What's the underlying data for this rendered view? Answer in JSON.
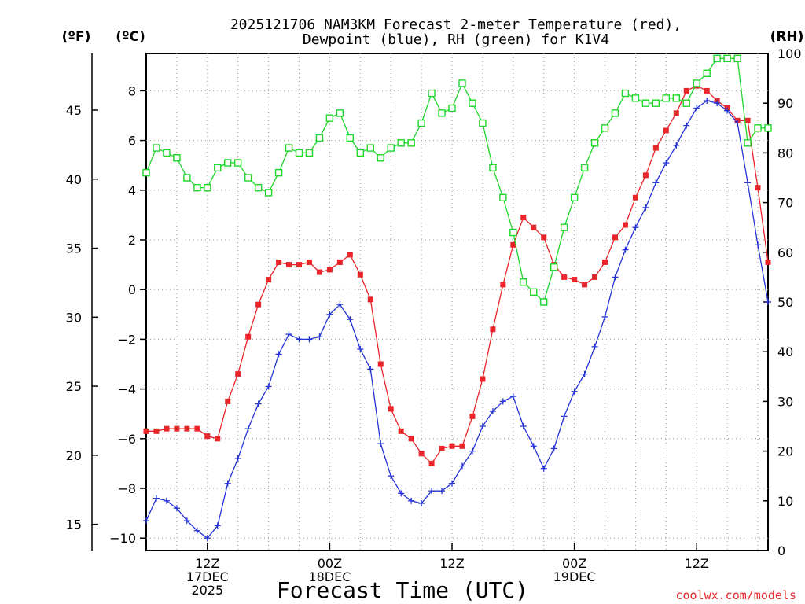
{
  "chart_data": {
    "type": "line",
    "title_line1": "2025121706 NAM3KM Forecast 2-meter Temperature (red),",
    "title_line2": "Dewpoint (blue), RH (green) for K1V4",
    "xlabel": "Forecast Time (UTC)",
    "credit": "coolwx.com/models",
    "axis_label_f": "(ºF)",
    "axis_label_c": "(ºC)",
    "axis_label_rh": "(RH)",
    "x_unit": "forecast hour from 2025-12-17 06Z",
    "xlim": [
      0,
      61
    ],
    "ylim_c": [
      -10.5,
      9.5
    ],
    "ylim_rh": [
      0,
      100
    ],
    "x_ticks": [
      {
        "x": 6,
        "lines": [
          "12Z",
          "17DEC",
          "2025"
        ]
      },
      {
        "x": 18,
        "lines": [
          "00Z",
          "18DEC"
        ]
      },
      {
        "x": 30,
        "lines": [
          "12Z"
        ]
      },
      {
        "x": 42,
        "lines": [
          "00Z",
          "19DEC"
        ]
      },
      {
        "x": 54,
        "lines": [
          "12Z"
        ]
      }
    ],
    "y_ticks_c": [
      -10,
      -8,
      -6,
      -4,
      -2,
      0,
      2,
      4,
      6,
      8
    ],
    "y_ticks_f": [
      15,
      20,
      25,
      30,
      35,
      40,
      45
    ],
    "y_ticks_rh": [
      0,
      10,
      20,
      30,
      40,
      50,
      60,
      70,
      80,
      90,
      100
    ],
    "x": [
      0,
      1,
      2,
      3,
      4,
      5,
      6,
      7,
      8,
      9,
      10,
      11,
      12,
      13,
      14,
      15,
      16,
      17,
      18,
      19,
      20,
      21,
      22,
      23,
      24,
      25,
      26,
      27,
      28,
      29,
      30,
      31,
      32,
      33,
      34,
      35,
      36,
      37,
      38,
      39,
      40,
      41,
      42,
      43,
      44,
      45,
      46,
      47,
      48,
      49,
      50,
      51,
      52,
      53,
      54,
      55,
      56,
      57,
      58,
      59,
      60,
      61
    ],
    "series": [
      {
        "name": "2-meter Temperature",
        "unit": "C",
        "color": "#e8252a",
        "marker": "filled-square",
        "values": [
          -5.7,
          -5.7,
          -5.6,
          -5.6,
          -5.6,
          -5.6,
          -5.9,
          -6.0,
          -4.5,
          -3.4,
          -1.9,
          -0.6,
          0.4,
          1.1,
          1.0,
          1.0,
          1.1,
          0.7,
          0.8,
          1.1,
          1.4,
          0.6,
          -0.4,
          -3.0,
          -4.8,
          -5.7,
          -6.0,
          -6.6,
          -7.0,
          -6.4,
          -6.3,
          -6.3,
          -5.1,
          -3.6,
          -1.6,
          0.2,
          1.8,
          2.9,
          2.5,
          2.1,
          1.0,
          0.5,
          0.4,
          0.2,
          0.5,
          1.1,
          2.1,
          2.6,
          3.7,
          4.6,
          5.7,
          6.4,
          7.1,
          8.0,
          8.2,
          8.0,
          7.6,
          7.3,
          6.8,
          6.8,
          4.1,
          1.1
        ]
      },
      {
        "name": "Dewpoint",
        "unit": "C",
        "color": "#2433d6",
        "marker": "plus",
        "values": [
          -9.3,
          -8.4,
          -8.5,
          -8.8,
          -9.3,
          -9.7,
          -10.0,
          -9.5,
          -7.8,
          -6.8,
          -5.6,
          -4.6,
          -3.9,
          -2.6,
          -1.8,
          -2.0,
          -2.0,
          -1.9,
          -1.0,
          -0.6,
          -1.2,
          -2.4,
          -3.2,
          -6.2,
          -7.5,
          -8.2,
          -8.5,
          -8.6,
          -8.1,
          -8.1,
          -7.8,
          -7.1,
          -6.5,
          -5.5,
          -4.9,
          -4.5,
          -4.3,
          -5.5,
          -6.3,
          -7.2,
          -6.4,
          -5.1,
          -4.1,
          -3.4,
          -2.3,
          -1.1,
          0.5,
          1.6,
          2.5,
          3.3,
          4.3,
          5.1,
          5.8,
          6.6,
          7.3,
          7.6,
          7.5,
          7.2,
          6.7,
          4.3,
          1.8,
          -0.5
        ]
      },
      {
        "name": "RH",
        "unit": "%",
        "color": "#1fd62a",
        "marker": "open-square",
        "values": [
          76,
          81,
          80,
          79,
          75,
          73,
          73,
          77,
          78,
          78,
          75,
          73,
          72,
          76,
          81,
          80,
          80,
          83,
          87,
          88,
          83,
          80,
          81,
          79,
          81,
          82,
          82,
          86,
          92,
          88,
          89,
          94,
          90,
          86,
          77,
          71,
          64,
          54,
          52,
          50,
          57,
          65,
          71,
          77,
          82,
          85,
          88,
          92,
          91,
          90,
          90,
          91,
          91,
          90,
          94,
          96,
          99,
          99,
          99,
          82,
          85,
          85
        ]
      }
    ]
  }
}
